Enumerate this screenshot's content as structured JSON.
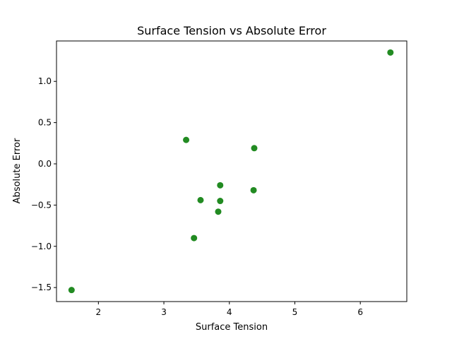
{
  "chart_data": {
    "type": "scatter",
    "title": "Surface Tension vs Absolute Error",
    "xlabel": "Surface Tension",
    "ylabel": "Absolute Error",
    "xlim": [
      1.36,
      6.71
    ],
    "ylim": [
      -1.67,
      1.49
    ],
    "x_ticks": [
      2,
      3,
      4,
      5,
      6
    ],
    "y_ticks": [
      -1.5,
      -1.0,
      -0.5,
      0.0,
      0.5,
      1.0
    ],
    "y_tick_labels": [
      "−1.5",
      "−1.0",
      "−0.5",
      "0.0",
      "0.5",
      "1.0"
    ],
    "x_tick_labels": [
      "2",
      "3",
      "4",
      "5",
      "6"
    ],
    "grid": false,
    "marker_color": "#228b22",
    "points": [
      {
        "x": 1.59,
        "y": -1.53
      },
      {
        "x": 3.34,
        "y": 0.29
      },
      {
        "x": 3.46,
        "y": -0.9
      },
      {
        "x": 3.56,
        "y": -0.44
      },
      {
        "x": 3.83,
        "y": -0.58
      },
      {
        "x": 3.86,
        "y": -0.45
      },
      {
        "x": 3.86,
        "y": -0.26
      },
      {
        "x": 4.37,
        "y": -0.32
      },
      {
        "x": 4.38,
        "y": 0.19
      },
      {
        "x": 6.46,
        "y": 1.35
      }
    ]
  }
}
